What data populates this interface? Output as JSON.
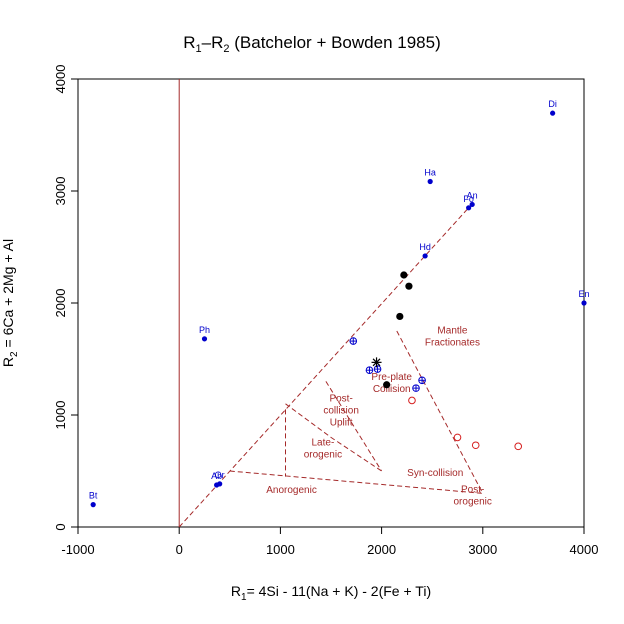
{
  "chart_data": {
    "type": "scatter",
    "title": {
      "main": "R",
      "sub1": "1",
      "sep": "–R",
      "sub2": "2",
      "rest": " (Batchelor + Bowden 1985)"
    },
    "xlabel": {
      "prefix": "R",
      "sub": "1",
      "rest": "= 4Si - 11(Na + K) - 2(Fe + Ti)"
    },
    "ylabel": {
      "prefix": "R",
      "sub": "2",
      "rest": " = 6Ca + 2Mg + Al"
    },
    "xlim": [
      -1000,
      4000
    ],
    "ylim": [
      0,
      4000
    ],
    "xticks": [
      {
        "value": -1000,
        "label": "-1000"
      },
      {
        "value": 0,
        "label": "0"
      },
      {
        "value": 1000,
        "label": "1000"
      },
      {
        "value": 2000,
        "label": "2000"
      },
      {
        "value": 3000,
        "label": "3000"
      },
      {
        "value": 4000,
        "label": "4000"
      }
    ],
    "yticks": [
      {
        "value": 0,
        "label": "0"
      },
      {
        "value": 1000,
        "label": "1000"
      },
      {
        "value": 2000,
        "label": "2000"
      },
      {
        "value": 3000,
        "label": "3000"
      },
      {
        "value": 4000,
        "label": "4000"
      }
    ],
    "colors": {
      "mineral": "#0000cc",
      "boundary": "#a52a2a",
      "sample_black": "#000000",
      "sample_red": "#d62020",
      "ref_line": "#a52a2a"
    },
    "reference_lines": [
      {
        "type": "vertical",
        "x": 0
      }
    ],
    "minerals": [
      {
        "label": "Di",
        "x": 3690,
        "y": 3695
      },
      {
        "label": "Ha",
        "x": 2480,
        "y": 3085
      },
      {
        "label": "Fo",
        "x": 2860,
        "y": 2850
      },
      {
        "label": "An",
        "x": 2895,
        "y": 2880
      },
      {
        "label": "Hd",
        "x": 2430,
        "y": 2420
      },
      {
        "label": "En",
        "x": 4000,
        "y": 2000
      },
      {
        "label": "Ph",
        "x": 250,
        "y": 1680
      },
      {
        "label": "Ab",
        "x": 370,
        "y": 375
      },
      {
        "label": "Or",
        "x": 400,
        "y": 385
      },
      {
        "label": "Bt",
        "x": -850,
        "y": 200
      }
    ],
    "boundaries": [
      {
        "name": "mantle-fractionates-boundary",
        "points": [
          [
            0,
            0
          ],
          [
            2860,
            2850
          ]
        ]
      },
      {
        "name": "pre-plate-collision-boundary",
        "points": [
          [
            2150,
            1750
          ],
          [
            3000,
            300
          ]
        ]
      },
      {
        "name": "anorogenic-boundary",
        "points": [
          [
            500,
            500
          ],
          [
            3000,
            300
          ]
        ]
      },
      {
        "name": "late-orogenic-boundary",
        "points": [
          [
            1050,
            1100
          ],
          [
            1500,
            800
          ],
          [
            2000,
            500
          ]
        ]
      },
      {
        "name": "post-collision-boundary",
        "points": [
          [
            1450,
            1300
          ],
          [
            2000,
            500
          ]
        ]
      },
      {
        "name": "post-orogenic-boundary",
        "points": [
          [
            1050,
            1050
          ],
          [
            1050,
            450
          ]
        ]
      }
    ],
    "field_labels": [
      {
        "lines": [
          "Mantle",
          "Fractionates"
        ],
        "x": 2700,
        "y": 1710
      },
      {
        "lines": [
          "Pre-plate",
          "Collision"
        ],
        "x": 2100,
        "y": 1295
      },
      {
        "lines": [
          "Post-",
          "collision",
          "Uplift"
        ],
        "x": 1600,
        "y": 1050
      },
      {
        "lines": [
          "Late-",
          "orogenic"
        ],
        "x": 1420,
        "y": 710
      },
      {
        "lines": [
          "Syn-collision"
        ],
        "x": 2530,
        "y": 490
      },
      {
        "lines": [
          "Anorogenic"
        ],
        "x": 1110,
        "y": 340
      },
      {
        "lines": [
          "Post-",
          "orogenic"
        ],
        "x": 2900,
        "y": 290
      }
    ],
    "series": [
      {
        "symbol": "filled-circle",
        "color": "#000000",
        "points": [
          [
            2220,
            2250
          ],
          [
            2270,
            2150
          ],
          [
            2180,
            1880
          ],
          [
            2050,
            1270
          ]
        ]
      },
      {
        "symbol": "open-circle",
        "color": "#d62020",
        "points": [
          [
            2300,
            1130
          ],
          [
            2750,
            800
          ],
          [
            2930,
            730
          ],
          [
            3350,
            720
          ]
        ]
      },
      {
        "symbol": "circle-plus",
        "color": "#0000cc",
        "points": [
          [
            1720,
            1660
          ],
          [
            1880,
            1400
          ],
          [
            1960,
            1410
          ],
          [
            2340,
            1240
          ],
          [
            2400,
            1310
          ]
        ]
      },
      {
        "symbol": "asterisk",
        "color": "#000000",
        "points": [
          [
            1950,
            1470
          ]
        ]
      }
    ]
  }
}
